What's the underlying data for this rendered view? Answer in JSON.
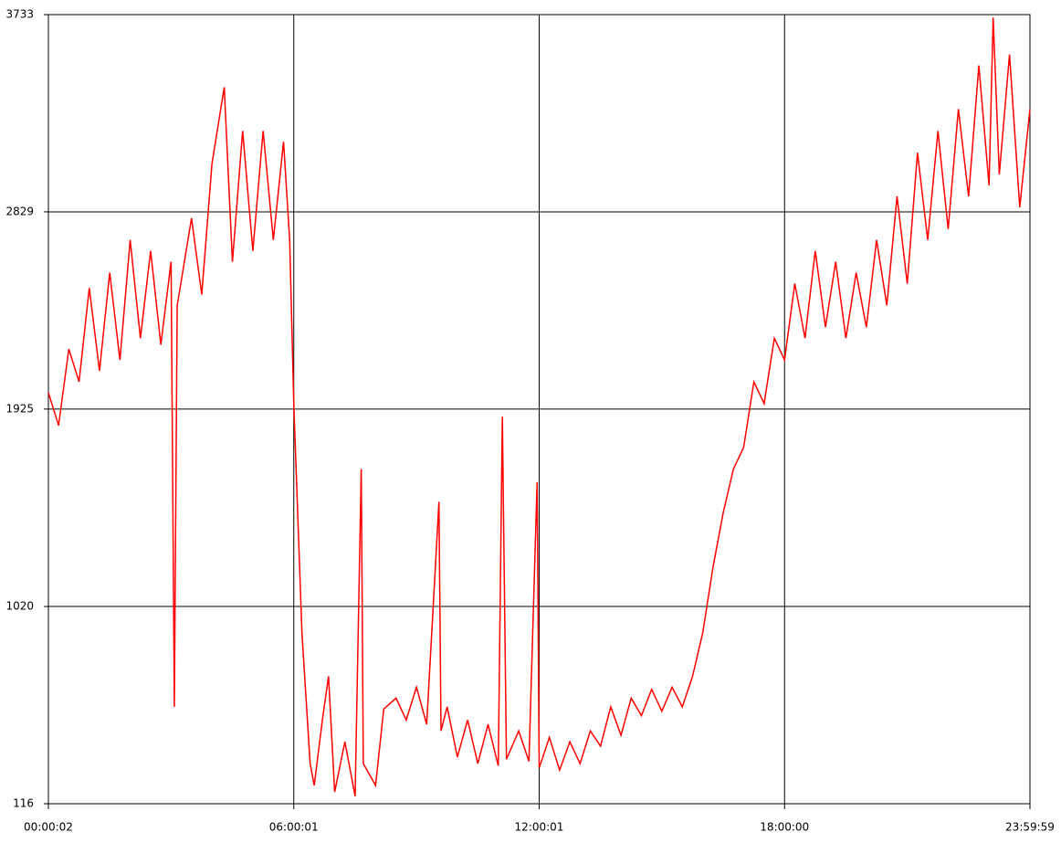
{
  "chart_data": {
    "type": "line",
    "x": [
      2,
      900,
      1800,
      2700,
      3600,
      4500,
      5400,
      6300,
      7200,
      8100,
      9000,
      9900,
      10800,
      11088,
      11340,
      12600,
      13500,
      14400,
      15480,
      16200,
      17100,
      18000,
      18900,
      19800,
      20700,
      21240,
      21601,
      22320,
      23040,
      23400,
      24120,
      24660,
      25200,
      26100,
      27000,
      27540,
      27720,
      28800,
      29520,
      30600,
      31500,
      32400,
      33300,
      34380,
      34560,
      35100,
      36000,
      36900,
      37800,
      38700,
      39600,
      39960,
      40320,
      41400,
      42300,
      43020,
      43201,
      44100,
      45000,
      45900,
      46800,
      47700,
      48600,
      49500,
      50400,
      51300,
      52200,
      53100,
      54000,
      54900,
      55800,
      56700,
      57600,
      58500,
      59400,
      60300,
      61200,
      62100,
      63000,
      63900,
      64800,
      65700,
      66600,
      67500,
      68400,
      69300,
      70200,
      71100,
      72000,
      72900,
      73800,
      74700,
      75600,
      76500,
      77400,
      78300,
      79200,
      80100,
      81000,
      81900,
      82800,
      83160,
      83700,
      84600,
      85500,
      86399
    ],
    "series": [
      {
        "color": "#ff0000",
        "values": [
          2000,
          1850,
          2200,
          2050,
          2480,
          2100,
          2550,
          2150,
          2700,
          2250,
          2650,
          2220,
          2600,
          560,
          2400,
          2800,
          2450,
          3050,
          3400,
          2600,
          3200,
          2650,
          3200,
          2700,
          3150,
          2700,
          1950,
          900,
          300,
          200,
          500,
          700,
          170,
          400,
          150,
          1650,
          300,
          200,
          550,
          600,
          500,
          650,
          480,
          1500,
          450,
          560,
          330,
          500,
          300,
          480,
          290,
          1890,
          320,
          450,
          310,
          1590,
          280,
          420,
          270,
          400,
          300,
          450,
          380,
          560,
          430,
          600,
          520,
          640,
          540,
          650,
          560,
          700,
          900,
          1200,
          1450,
          1650,
          1750,
          2050,
          1950,
          2250,
          2150,
          2500,
          2250,
          2650,
          2300,
          2600,
          2250,
          2550,
          2300,
          2700,
          2400,
          2900,
          2500,
          3100,
          2700,
          3200,
          2750,
          3300,
          2900,
          3500,
          2950,
          3720,
          3000,
          3550,
          2850,
          3300
        ]
      }
    ],
    "xlim": [
      2,
      86399
    ],
    "xticks": [
      {
        "value": 2,
        "label": "00:00:02"
      },
      {
        "value": 21601,
        "label": "06:00:01"
      },
      {
        "value": 43201,
        "label": "12:00:01"
      },
      {
        "value": 64800,
        "label": "18:00:00"
      },
      {
        "value": 86399,
        "label": "23:59:59"
      }
    ],
    "ylim": [
      116,
      3733
    ],
    "yticks": [
      116,
      1020,
      1925,
      2829,
      3733
    ],
    "grid": true
  }
}
